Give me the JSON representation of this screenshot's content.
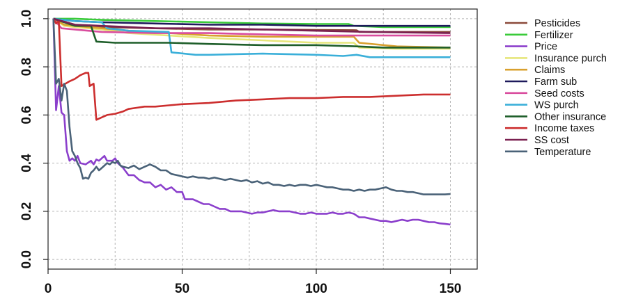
{
  "chart_data": {
    "type": "line",
    "title": "",
    "xlabel": "",
    "ylabel": "",
    "xlim": [
      0,
      160
    ],
    "ylim": [
      -0.04,
      1.04
    ],
    "x_ticks": [
      0,
      50,
      100,
      150
    ],
    "y_ticks": [
      0.0,
      0.2,
      0.4,
      0.6,
      0.8,
      1.0
    ],
    "x_tick_labels": [
      "0",
      "50",
      "100",
      "150"
    ],
    "y_tick_labels": [
      "0.0",
      "0.2",
      "0.4",
      "0.6",
      "0.8",
      "1.0"
    ],
    "grid": "dotted",
    "legend_position": "right",
    "series": [
      {
        "name": "Pesticides",
        "color": "#8B4A3A",
        "points": [
          [
            2,
            1.0
          ],
          [
            5,
            0.99
          ],
          [
            10,
            0.975
          ],
          [
            20,
            0.965
          ],
          [
            40,
            0.96
          ],
          [
            60,
            0.955
          ],
          [
            80,
            0.955
          ],
          [
            100,
            0.953
          ],
          [
            115,
            0.952
          ],
          [
            116,
            0.945
          ],
          [
            130,
            0.945
          ],
          [
            150,
            0.945
          ]
        ]
      },
      {
        "name": "Fertilizer",
        "color": "#3ACB3A",
        "points": [
          [
            2,
            1.0
          ],
          [
            10,
            1.0
          ],
          [
            20,
            0.995
          ],
          [
            40,
            0.99
          ],
          [
            60,
            0.985
          ],
          [
            80,
            0.98
          ],
          [
            100,
            0.978
          ],
          [
            112,
            0.978
          ],
          [
            114,
            0.97
          ],
          [
            125,
            0.965
          ],
          [
            150,
            0.965
          ]
        ]
      },
      {
        "name": "Price",
        "color": "#8B3FCC",
        "points": [
          [
            2,
            1.0
          ],
          [
            3,
            0.62
          ],
          [
            4,
            0.72
          ],
          [
            5,
            0.61
          ],
          [
            6,
            0.6
          ],
          [
            7,
            0.45
          ],
          [
            8,
            0.41
          ],
          [
            9,
            0.42
          ],
          [
            10,
            0.41
          ],
          [
            11,
            0.43
          ],
          [
            12,
            0.4
          ],
          [
            14,
            0.395
          ],
          [
            16,
            0.41
          ],
          [
            17,
            0.395
          ],
          [
            18,
            0.415
          ],
          [
            19,
            0.41
          ],
          [
            20,
            0.42
          ],
          [
            21,
            0.43
          ],
          [
            22,
            0.41
          ],
          [
            24,
            0.41
          ],
          [
            25,
            0.42
          ],
          [
            26,
            0.4
          ],
          [
            28,
            0.38
          ],
          [
            30,
            0.35
          ],
          [
            32,
            0.35
          ],
          [
            34,
            0.33
          ],
          [
            36,
            0.32
          ],
          [
            38,
            0.32
          ],
          [
            40,
            0.3
          ],
          [
            42,
            0.31
          ],
          [
            44,
            0.29
          ],
          [
            46,
            0.3
          ],
          [
            48,
            0.28
          ],
          [
            50,
            0.28
          ],
          [
            51,
            0.25
          ],
          [
            54,
            0.25
          ],
          [
            56,
            0.24
          ],
          [
            58,
            0.23
          ],
          [
            60,
            0.23
          ],
          [
            62,
            0.22
          ],
          [
            64,
            0.21
          ],
          [
            66,
            0.21
          ],
          [
            68,
            0.2
          ],
          [
            70,
            0.2
          ],
          [
            72,
            0.2
          ],
          [
            74,
            0.195
          ],
          [
            76,
            0.19
          ],
          [
            78,
            0.195
          ],
          [
            80,
            0.195
          ],
          [
            82,
            0.2
          ],
          [
            84,
            0.205
          ],
          [
            86,
            0.2
          ],
          [
            88,
            0.2
          ],
          [
            90,
            0.2
          ],
          [
            92,
            0.195
          ],
          [
            94,
            0.19
          ],
          [
            96,
            0.19
          ],
          [
            98,
            0.195
          ],
          [
            100,
            0.19
          ],
          [
            102,
            0.19
          ],
          [
            104,
            0.19
          ],
          [
            106,
            0.195
          ],
          [
            108,
            0.19
          ],
          [
            110,
            0.19
          ],
          [
            112,
            0.195
          ],
          [
            114,
            0.19
          ],
          [
            116,
            0.175
          ],
          [
            118,
            0.175
          ],
          [
            120,
            0.17
          ],
          [
            122,
            0.165
          ],
          [
            124,
            0.16
          ],
          [
            126,
            0.16
          ],
          [
            128,
            0.155
          ],
          [
            130,
            0.16
          ],
          [
            132,
            0.165
          ],
          [
            134,
            0.16
          ],
          [
            136,
            0.165
          ],
          [
            138,
            0.165
          ],
          [
            140,
            0.16
          ],
          [
            142,
            0.155
          ],
          [
            144,
            0.155
          ],
          [
            146,
            0.15
          ],
          [
            148,
            0.148
          ],
          [
            150,
            0.145
          ]
        ]
      },
      {
        "name": "Insurance purch",
        "color": "#E6E67A",
        "points": [
          [
            2,
            1.0
          ],
          [
            6,
            0.97
          ],
          [
            10,
            0.965
          ],
          [
            20,
            0.955
          ],
          [
            30,
            0.94
          ],
          [
            45,
            0.93
          ],
          [
            60,
            0.92
          ],
          [
            80,
            0.91
          ],
          [
            100,
            0.9
          ],
          [
            114,
            0.9
          ],
          [
            116,
            0.88
          ],
          [
            130,
            0.875
          ],
          [
            150,
            0.875
          ]
        ]
      },
      {
        "name": "Claims",
        "color": "#D9A02E",
        "points": [
          [
            2,
            1.0
          ],
          [
            6,
            0.975
          ],
          [
            10,
            0.97
          ],
          [
            20,
            0.96
          ],
          [
            30,
            0.95
          ],
          [
            45,
            0.94
          ],
          [
            60,
            0.93
          ],
          [
            80,
            0.925
          ],
          [
            100,
            0.925
          ],
          [
            114,
            0.925
          ],
          [
            116,
            0.9
          ],
          [
            130,
            0.885
          ],
          [
            150,
            0.88
          ]
        ]
      },
      {
        "name": "Farm sub",
        "color": "#1E1A5C",
        "points": [
          [
            2,
            1.0
          ],
          [
            10,
            0.99
          ],
          [
            20,
            0.985
          ],
          [
            40,
            0.98
          ],
          [
            60,
            0.975
          ],
          [
            80,
            0.975
          ],
          [
            100,
            0.97
          ],
          [
            120,
            0.97
          ],
          [
            150,
            0.97
          ]
        ]
      },
      {
        "name": "Seed costs",
        "color": "#D94C9E",
        "points": [
          [
            2,
            1.0
          ],
          [
            5,
            0.96
          ],
          [
            10,
            0.955
          ],
          [
            20,
            0.945
          ],
          [
            40,
            0.94
          ],
          [
            60,
            0.94
          ],
          [
            80,
            0.935
          ],
          [
            100,
            0.93
          ],
          [
            120,
            0.93
          ],
          [
            150,
            0.93
          ]
        ]
      },
      {
        "name": "WS purch",
        "color": "#3AAFD9",
        "points": [
          [
            2,
            1.0
          ],
          [
            10,
            0.99
          ],
          [
            20,
            0.985
          ],
          [
            22,
            0.96
          ],
          [
            30,
            0.95
          ],
          [
            45,
            0.945
          ],
          [
            46,
            0.86
          ],
          [
            55,
            0.85
          ],
          [
            60,
            0.85
          ],
          [
            80,
            0.855
          ],
          [
            100,
            0.85
          ],
          [
            110,
            0.845
          ],
          [
            115,
            0.85
          ],
          [
            120,
            0.84
          ],
          [
            130,
            0.84
          ],
          [
            150,
            0.84
          ]
        ]
      },
      {
        "name": "Other insurance",
        "color": "#1E5E2A",
        "points": [
          [
            2,
            1.0
          ],
          [
            10,
            0.97
          ],
          [
            16,
            0.97
          ],
          [
            18,
            0.905
          ],
          [
            25,
            0.9
          ],
          [
            45,
            0.9
          ],
          [
            60,
            0.895
          ],
          [
            80,
            0.89
          ],
          [
            100,
            0.89
          ],
          [
            115,
            0.885
          ],
          [
            125,
            0.88
          ],
          [
            150,
            0.88
          ]
        ]
      },
      {
        "name": "Income taxes",
        "color": "#CC2E2E",
        "points": [
          [
            2,
            1.0
          ],
          [
            3,
            0.98
          ],
          [
            4,
            0.99
          ],
          [
            5,
            0.72
          ],
          [
            8,
            0.74
          ],
          [
            10,
            0.75
          ],
          [
            12,
            0.765
          ],
          [
            14,
            0.775
          ],
          [
            15,
            0.775
          ],
          [
            15.5,
            0.72
          ],
          [
            17,
            0.73
          ],
          [
            18,
            0.58
          ],
          [
            20,
            0.59
          ],
          [
            22,
            0.6
          ],
          [
            25,
            0.605
          ],
          [
            28,
            0.615
          ],
          [
            30,
            0.625
          ],
          [
            33,
            0.63
          ],
          [
            36,
            0.635
          ],
          [
            40,
            0.635
          ],
          [
            45,
            0.64
          ],
          [
            50,
            0.645
          ],
          [
            60,
            0.65
          ],
          [
            70,
            0.66
          ],
          [
            80,
            0.665
          ],
          [
            90,
            0.67
          ],
          [
            100,
            0.67
          ],
          [
            110,
            0.675
          ],
          [
            120,
            0.675
          ],
          [
            130,
            0.68
          ],
          [
            140,
            0.685
          ],
          [
            150,
            0.685
          ]
        ]
      },
      {
        "name": "SS cost",
        "color": "#7A2050",
        "points": [
          [
            2,
            1.0
          ],
          [
            10,
            0.975
          ],
          [
            20,
            0.97
          ],
          [
            40,
            0.96
          ],
          [
            60,
            0.96
          ],
          [
            80,
            0.955
          ],
          [
            100,
            0.95
          ],
          [
            120,
            0.945
          ],
          [
            150,
            0.94
          ]
        ]
      },
      {
        "name": "Temperature",
        "color": "#4A6278",
        "points": [
          [
            2,
            1.0
          ],
          [
            3,
            0.73
          ],
          [
            4,
            0.75
          ],
          [
            5,
            0.66
          ],
          [
            6,
            0.73
          ],
          [
            7,
            0.7
          ],
          [
            8,
            0.55
          ],
          [
            9,
            0.45
          ],
          [
            10,
            0.43
          ],
          [
            11,
            0.4
          ],
          [
            12,
            0.38
          ],
          [
            13,
            0.335
          ],
          [
            14,
            0.34
          ],
          [
            15,
            0.335
          ],
          [
            16,
            0.36
          ],
          [
            17,
            0.37
          ],
          [
            18,
            0.385
          ],
          [
            19,
            0.37
          ],
          [
            20,
            0.38
          ],
          [
            21,
            0.39
          ],
          [
            22,
            0.4
          ],
          [
            23,
            0.395
          ],
          [
            24,
            0.405
          ],
          [
            25,
            0.4
          ],
          [
            26,
            0.41
          ],
          [
            27,
            0.39
          ],
          [
            28,
            0.385
          ],
          [
            30,
            0.38
          ],
          [
            32,
            0.39
          ],
          [
            34,
            0.375
          ],
          [
            36,
            0.385
          ],
          [
            38,
            0.395
          ],
          [
            40,
            0.385
          ],
          [
            42,
            0.37
          ],
          [
            44,
            0.37
          ],
          [
            46,
            0.355
          ],
          [
            48,
            0.35
          ],
          [
            50,
            0.345
          ],
          [
            52,
            0.34
          ],
          [
            54,
            0.345
          ],
          [
            56,
            0.34
          ],
          [
            58,
            0.34
          ],
          [
            60,
            0.335
          ],
          [
            62,
            0.34
          ],
          [
            64,
            0.335
          ],
          [
            66,
            0.33
          ],
          [
            68,
            0.335
          ],
          [
            70,
            0.33
          ],
          [
            72,
            0.325
          ],
          [
            74,
            0.33
          ],
          [
            76,
            0.32
          ],
          [
            78,
            0.325
          ],
          [
            80,
            0.315
          ],
          [
            82,
            0.32
          ],
          [
            84,
            0.31
          ],
          [
            86,
            0.31
          ],
          [
            88,
            0.305
          ],
          [
            90,
            0.31
          ],
          [
            92,
            0.305
          ],
          [
            94,
            0.31
          ],
          [
            96,
            0.31
          ],
          [
            98,
            0.305
          ],
          [
            100,
            0.31
          ],
          [
            102,
            0.305
          ],
          [
            104,
            0.3
          ],
          [
            106,
            0.3
          ],
          [
            108,
            0.295
          ],
          [
            110,
            0.29
          ],
          [
            112,
            0.29
          ],
          [
            114,
            0.285
          ],
          [
            116,
            0.29
          ],
          [
            118,
            0.285
          ],
          [
            120,
            0.29
          ],
          [
            122,
            0.29
          ],
          [
            124,
            0.295
          ],
          [
            126,
            0.3
          ],
          [
            128,
            0.29
          ],
          [
            130,
            0.285
          ],
          [
            132,
            0.285
          ],
          [
            134,
            0.28
          ],
          [
            136,
            0.28
          ],
          [
            138,
            0.275
          ],
          [
            140,
            0.27
          ],
          [
            142,
            0.27
          ],
          [
            144,
            0.27
          ],
          [
            146,
            0.27
          ],
          [
            148,
            0.27
          ],
          [
            150,
            0.272
          ]
        ]
      }
    ]
  }
}
